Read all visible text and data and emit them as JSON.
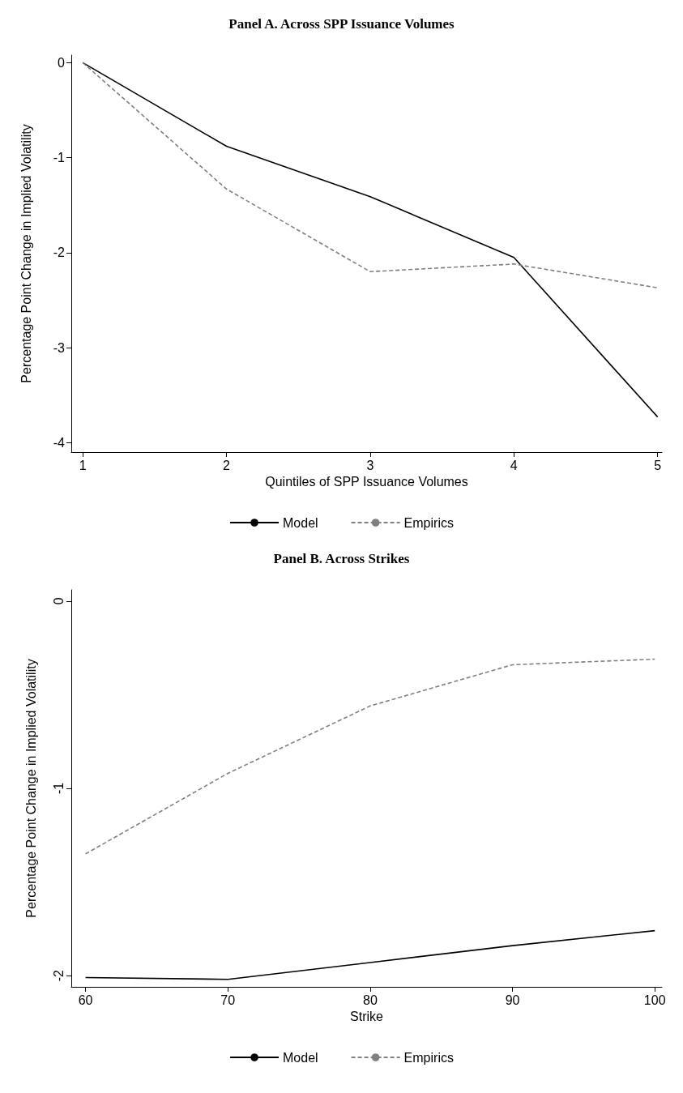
{
  "chart_data": [
    {
      "type": "line",
      "title": "Panel A. Across SPP Issuance Volumes",
      "xlabel": "Quintiles of SPP Issuance Volumes",
      "ylabel": "Percentage Point Change in Implied Volatility",
      "x": [
        1,
        2,
        3,
        4,
        5
      ],
      "xlim": [
        0.92,
        5.03
      ],
      "xticks": [
        1,
        2,
        3,
        4,
        5
      ],
      "ylim": [
        -4.1,
        0.08
      ],
      "yticks": [
        0,
        -1,
        -2,
        -3,
        -4
      ],
      "grid": false,
      "legend": "bottom",
      "marker": "none",
      "series": [
        {
          "name": "Model",
          "color": "#000000",
          "line_style": "solid",
          "values": [
            0,
            -0.88,
            -1.41,
            -2.05,
            -3.73
          ]
        },
        {
          "name": "Empirics",
          "color": "#808080",
          "line_style": "dashed",
          "values": [
            0,
            -1.33,
            -2.2,
            -2.12,
            -2.37
          ]
        }
      ]
    },
    {
      "type": "line",
      "title": "Panel B. Across Strikes",
      "xlabel": "Strike",
      "ylabel": "Percentage Point Change in Implied Volatility",
      "x": [
        60,
        70,
        80,
        90,
        100
      ],
      "xlim": [
        59,
        100.5
      ],
      "xticks": [
        60,
        70,
        80,
        90,
        100
      ],
      "ylim": [
        -2.06,
        0.06
      ],
      "yticks": [
        0,
        -1,
        -2
      ],
      "grid": false,
      "legend": "bottom",
      "marker": "none",
      "series": [
        {
          "name": "Model",
          "color": "#000000",
          "line_style": "solid",
          "values": [
            -2.01,
            -2.02,
            -1.93,
            -1.84,
            -1.76
          ]
        },
        {
          "name": "Empirics",
          "color": "#808080",
          "line_style": "dashed",
          "values": [
            -1.35,
            -0.92,
            -0.56,
            -0.34,
            -0.31
          ]
        }
      ]
    }
  ]
}
